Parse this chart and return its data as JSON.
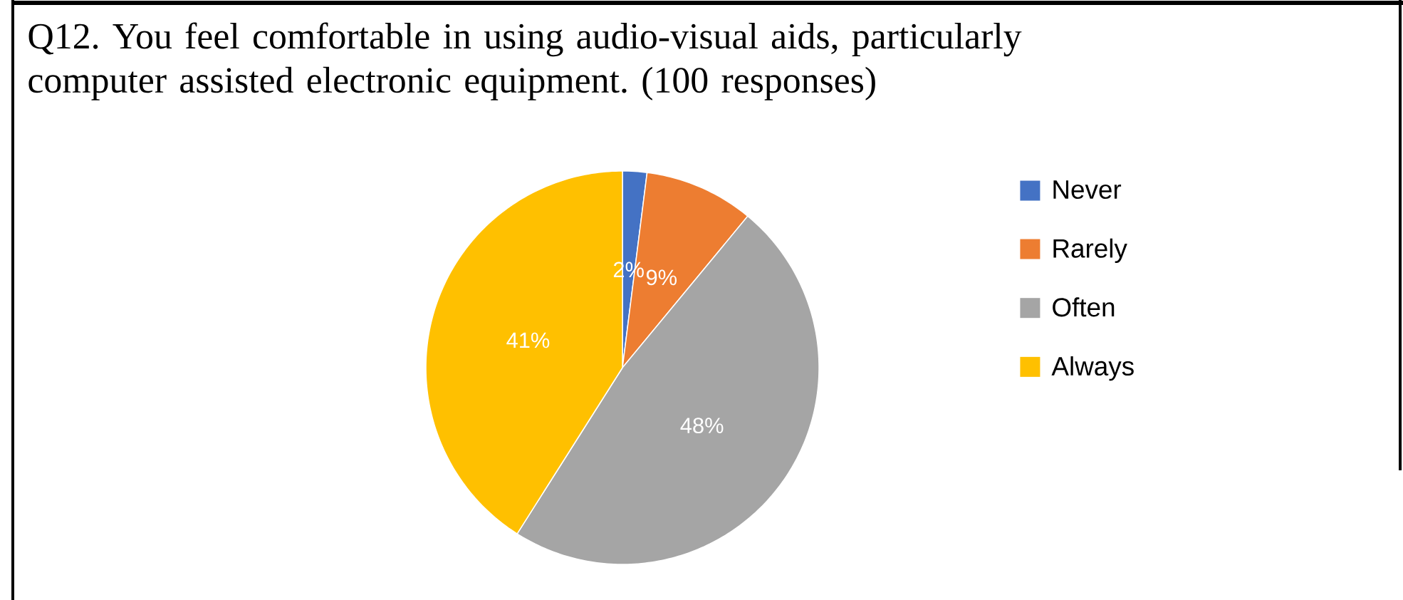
{
  "chart_data": {
    "type": "pie",
    "title": "Q12. You feel comfortable in using audio-visual aids, particularly computer assisted electronic equipment. (100 responses)",
    "categories": [
      "Never",
      "Rarely",
      "Often",
      "Always"
    ],
    "values": [
      2,
      9,
      48,
      41
    ],
    "colors": [
      "#4472c4",
      "#ed7d31",
      "#a5a5a5",
      "#ffc000"
    ],
    "value_labels": [
      "2%",
      "9%",
      "48%",
      "41%"
    ],
    "legend": "right"
  }
}
